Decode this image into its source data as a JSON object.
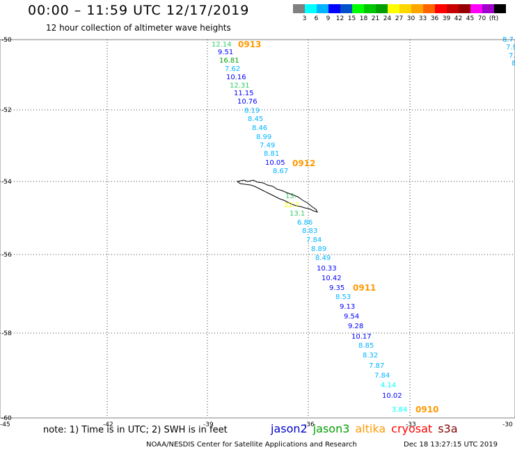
{
  "header": {
    "title": "00:00 – 11:59 UTC 12/17/2019",
    "subtitle": "12 hour collection of altimeter wave heights"
  },
  "scale": {
    "colors": [
      "#808080",
      "#00ffff",
      "#00b4ff",
      "#0000ff",
      "#0050c8",
      "#00ff00",
      "#00c800",
      "#00a000",
      "#ffff00",
      "#ffd700",
      "#ffa500",
      "#ff6400",
      "#ff0000",
      "#c80000",
      "#960000",
      "#ff00ff",
      "#a000c8",
      "#000000"
    ],
    "labels": [
      "3",
      "6",
      "9",
      "12",
      "15",
      "18",
      "21",
      "24",
      "27",
      "30",
      "33",
      "36",
      "39",
      "42",
      "45",
      "70",
      "(ft)"
    ]
  },
  "map": {
    "lat_labels": [
      "-50",
      "-52",
      "-54",
      "-56",
      "-58",
      "-60"
    ],
    "lon_labels": [
      "-45",
      "-42",
      "-39",
      "-36",
      "-33",
      "-30"
    ],
    "pass_labels": [
      {
        "text": "0913",
        "color": "#ff9900"
      },
      {
        "text": "0912",
        "color": "#ff9900"
      },
      {
        "text": "0911",
        "color": "#ff9900"
      },
      {
        "text": "0910",
        "color": "#ff9900"
      }
    ],
    "values": [
      {
        "t": "12.14",
        "c": "#33cc66"
      },
      {
        "t": "9.51",
        "c": "#0000ff"
      },
      {
        "t": "16.81",
        "c": "#00a000"
      },
      {
        "t": "7.62",
        "c": "#00b4ff"
      },
      {
        "t": "10.16",
        "c": "#0000ff"
      },
      {
        "t": "12.31",
        "c": "#33cc66"
      },
      {
        "t": "11.15",
        "c": "#0000ff"
      },
      {
        "t": "10.76",
        "c": "#0000ff"
      },
      {
        "t": "8.19",
        "c": "#00b4ff"
      },
      {
        "t": "8.45",
        "c": "#00b4ff"
      },
      {
        "t": "8.46",
        "c": "#00b4ff"
      },
      {
        "t": "8.99",
        "c": "#00b4ff"
      },
      {
        "t": "7.49",
        "c": "#00b4ff"
      },
      {
        "t": "8.81",
        "c": "#00b4ff"
      },
      {
        "t": "10.05",
        "c": "#0000ff"
      },
      {
        "t": "8.67",
        "c": "#00b4ff"
      },
      {
        "t": "13.",
        "c": "#33cc66"
      },
      {
        "t": "22.7",
        "c": "#ffff00"
      },
      {
        "t": "13.1",
        "c": "#33cc66"
      },
      {
        "t": "6.86",
        "c": "#00b4ff"
      },
      {
        "t": "8.83",
        "c": "#00b4ff"
      },
      {
        "t": "7.84",
        "c": "#00b4ff"
      },
      {
        "t": "8.89",
        "c": "#00b4ff"
      },
      {
        "t": "8.49",
        "c": "#00b4ff"
      },
      {
        "t": "10.33",
        "c": "#0000ff"
      },
      {
        "t": "10.42",
        "c": "#0000ff"
      },
      {
        "t": "9.35",
        "c": "#0000ff"
      },
      {
        "t": "8.53",
        "c": "#00b4ff"
      },
      {
        "t": "9.13",
        "c": "#0000ff"
      },
      {
        "t": "9.54",
        "c": "#0000ff"
      },
      {
        "t": "9.28",
        "c": "#0000ff"
      },
      {
        "t": "10.17",
        "c": "#0000ff"
      },
      {
        "t": "8.85",
        "c": "#00b4ff"
      },
      {
        "t": "8.32",
        "c": "#00b4ff"
      },
      {
        "t": "7.87",
        "c": "#00b4ff"
      },
      {
        "t": "7.84",
        "c": "#00b4ff"
      },
      {
        "t": "4.14",
        "c": "#00ffff"
      },
      {
        "t": "10.02",
        "c": "#0000ff"
      },
      {
        "t": "3.84",
        "c": "#00ffff"
      }
    ],
    "edge_values": [
      {
        "t": "8.7",
        "c": "#00b4ff"
      },
      {
        "t": "7.9",
        "c": "#00b4ff"
      },
      {
        "t": "7.",
        "c": "#00b4ff"
      },
      {
        "t": "8",
        "c": "#00b4ff"
      }
    ]
  },
  "footer": {
    "note": "note: 1) Time is in UTC; 2) SWH is in feet",
    "satellites": [
      {
        "name": "jason2",
        "color": "#0000cc"
      },
      {
        "name": "jason3",
        "color": "#00a000"
      },
      {
        "name": "altika",
        "color": "#ff9900"
      },
      {
        "name": "cryosat",
        "color": "#ff0000"
      },
      {
        "name": "s3a",
        "color": "#800000"
      }
    ],
    "credit": "NOAA/NESDIS Center for Satellite Applications and Research",
    "timestamp": "Dec 18 13:27:15 UTC 2019"
  }
}
